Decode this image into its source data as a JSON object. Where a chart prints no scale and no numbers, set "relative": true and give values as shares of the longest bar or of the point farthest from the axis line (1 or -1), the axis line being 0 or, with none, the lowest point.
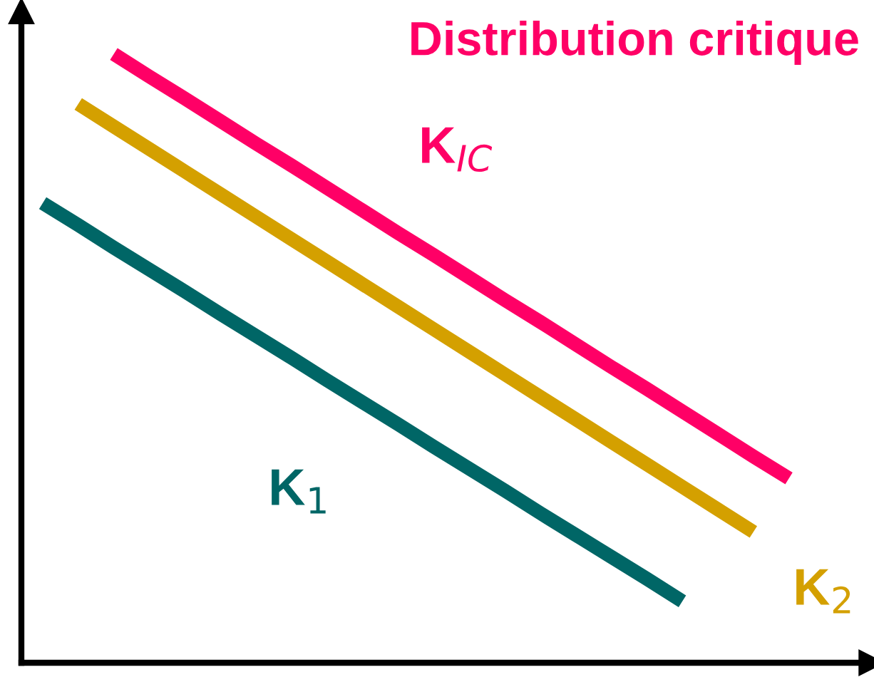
{
  "chart_data": {
    "type": "line",
    "title": "Distribution critique",
    "relative": true,
    "marker": "none",
    "line_style": "solid",
    "categories": [
      null,
      null,
      null,
      null,
      null,
      null,
      null,
      null,
      null,
      null,
      null,
      null,
      null,
      null,
      null,
      null,
      null,
      null,
      null,
      null,
      null,
      null
    ],
    "series": [
      {
        "name": "K$_{IC}$",
        "color": "#ff0066",
        "values": [
          null,
          null,
          1,
          0.963,
          0.927,
          0.89,
          0.853,
          0.817,
          0.78,
          0.743,
          0.706,
          0.67,
          0.633,
          0.596,
          0.56,
          0.523,
          0.486,
          0.45,
          0.413,
          0.376,
          0.339,
          0.303
        ]
      },
      {
        "name": "K$_{2}$",
        "color": "#d4a000",
        "values": [
          null,
          0.918,
          0.881,
          0.844,
          0.807,
          0.77,
          0.733,
          0.696,
          0.659,
          0.622,
          0.585,
          0.548,
          0.511,
          0.474,
          0.437,
          0.4,
          0.363,
          0.326,
          0.289,
          0.252,
          0.215,
          null
        ]
      },
      {
        "name": "K$_{1}$",
        "color": "#006666",
        "values": [
          0.755,
          0.719,
          0.682,
          0.646,
          0.61,
          0.573,
          0.537,
          0.501,
          0.464,
          0.428,
          0.392,
          0.355,
          0.319,
          0.283,
          0.246,
          0.21,
          0.174,
          0.138,
          0.101,
          null,
          null,
          null
        ]
      }
    ]
  }
}
